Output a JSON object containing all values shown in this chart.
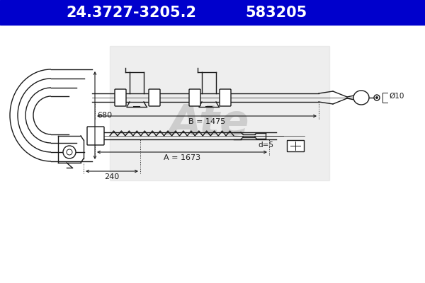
{
  "bg_color": "#ffffff",
  "header_bg": "#0000cc",
  "header_text_color": "#ffffff",
  "header_text1": "24.3727-3205.2",
  "header_text2": "583205",
  "line_color": "#1a1a1a",
  "watermark_color": "#d0d0d0",
  "annotations": {
    "B_label": "B = 1475",
    "A_label": "A = 1673",
    "dim_680": "680",
    "dim_240": "240",
    "dim_d5": "d=5",
    "dim_phi10": "Ø10"
  }
}
